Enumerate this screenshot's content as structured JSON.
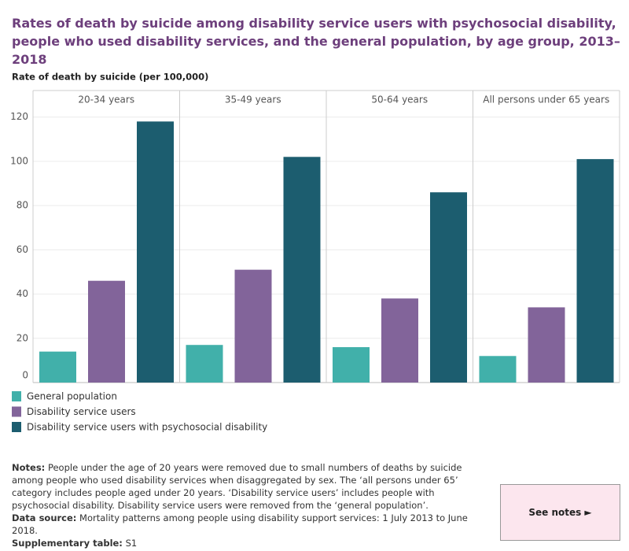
{
  "chart_data": {
    "type": "bar",
    "title": "Rates of death by suicide among disability service users with psychosocial disability, people who used disability services, and the general population, by age group,  2013–2018",
    "y_label": "Rate of death by suicide (per 100,000)",
    "categories": [
      "20-34 years",
      "35-49 years",
      "50-64 years",
      "All persons under 65 years"
    ],
    "series": [
      {
        "name": "General population",
        "color": "#41b0aa",
        "values": [
          14,
          17,
          16,
          12
        ]
      },
      {
        "name": "Disability service users",
        "color": "#82649a",
        "values": [
          46,
          51,
          38,
          34
        ]
      },
      {
        "name": "Disability service users with psychosocial disability",
        "color": "#1c5d6f",
        "values": [
          118,
          102,
          86,
          101
        ]
      }
    ],
    "ylim": [
      0,
      132
    ],
    "yticks": [
      0,
      20,
      40,
      60,
      80,
      100,
      120
    ],
    "grid": true,
    "legend": "bottom-left"
  },
  "notes": {
    "label": "Notes:",
    "text": "People under the age of 20 years were removed due to small numbers of deaths by suicide among people who used disability services when disaggregated by sex. The ‘all persons under 65’ category includes people aged under 20 years. ‘Disability service users’ includes people with psychosocial disability. Disability service users were removed from the ‘general population’."
  },
  "data_source": {
    "label": "Data source:",
    "text": "Mortality patterns among people using disability support services: 1 July 2013 to June 2018."
  },
  "supplementary_table": {
    "label": "Supplementary table:",
    "text": "S1"
  },
  "button": {
    "label": "See notes ►"
  }
}
